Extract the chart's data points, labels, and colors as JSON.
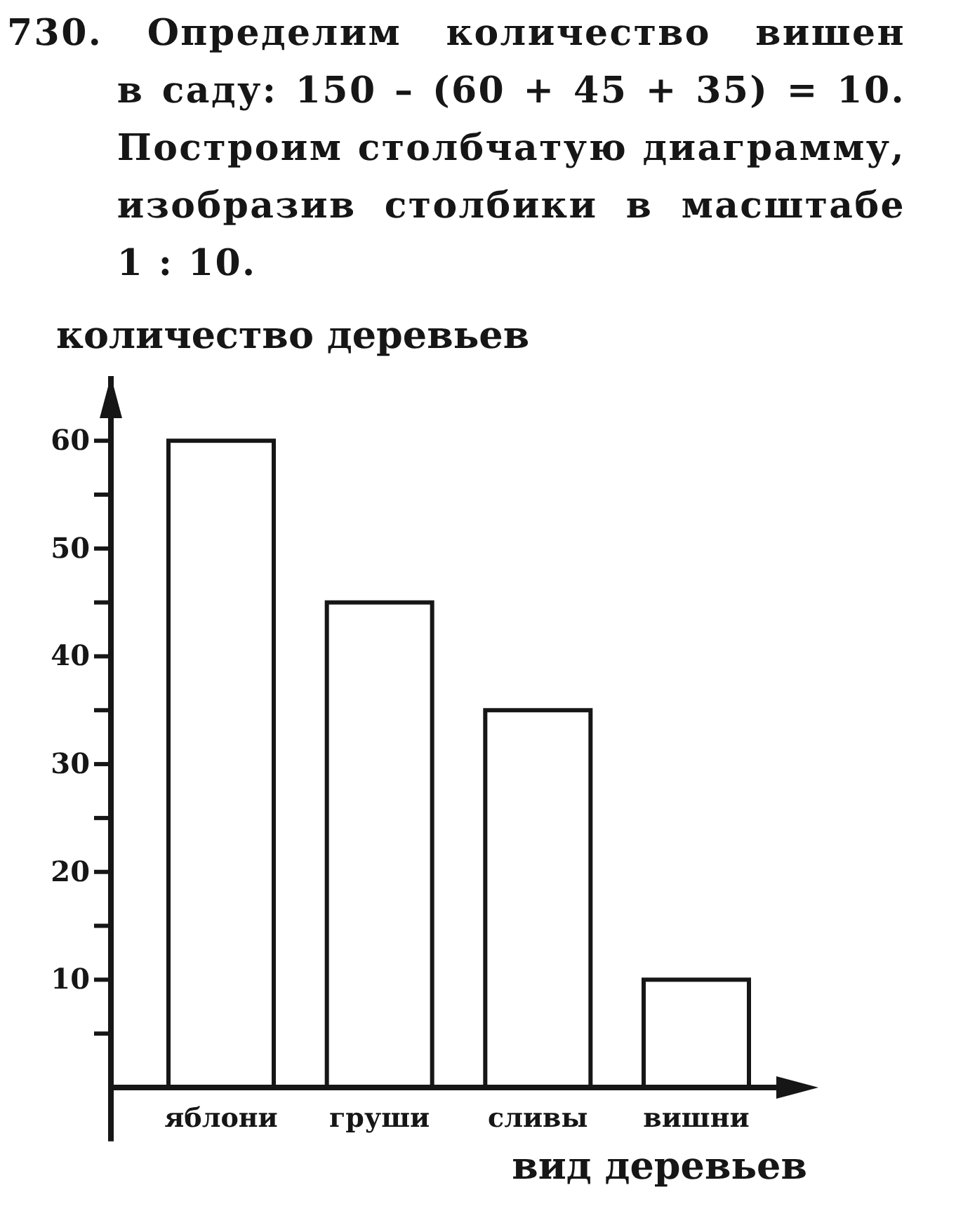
{
  "chart_data": {
    "type": "bar",
    "title": "730. Определим количество вишен в саду: 150 – (60 + 45 + 35) = 10. Построим столбчатую диаграмму, изобразив столбики в масштабе 1 : 10.",
    "ylabel": "количество деревьев",
    "xlabel": "вид деревьев",
    "categories": [
      "яблони",
      "груши",
      "сливы",
      "вишни"
    ],
    "values": [
      60,
      45,
      35,
      10
    ],
    "color": "#ffffff",
    "ylim": [
      -5,
      66
    ],
    "yticks": [
      {
        "value": 5,
        "label": null
      },
      10,
      {
        "value": 15,
        "label": null
      },
      20,
      {
        "value": 25,
        "label": null
      },
      30,
      {
        "value": 35,
        "label": null
      },
      40,
      {
        "value": 45,
        "label": null
      },
      50,
      {
        "value": 55,
        "label": null
      },
      60
    ]
  }
}
